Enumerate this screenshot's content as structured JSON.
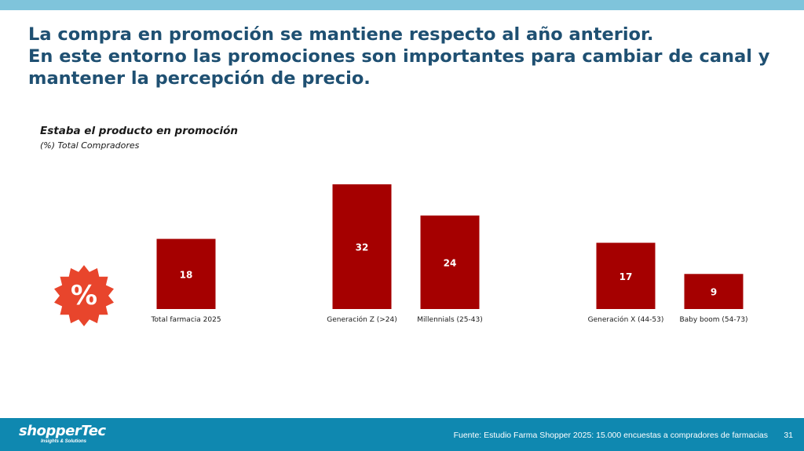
{
  "headline": {
    "line1": "La compra en promoción se mantiene respecto al año anterior.",
    "line2": "En este entorno las promociones son importantes para cambiar de canal y",
    "line3": "mantener la percepción de precio."
  },
  "promo_icon": "percent-badge-icon",
  "chart_data": {
    "type": "bar",
    "title": "Estaba el producto en promoción",
    "subtitle": "(%) Total Compradores",
    "categories": [
      "Total farmacia 2025",
      "Generación Z (>24)",
      "Millennials (25-43)",
      "Generación X (44-53)",
      "Baby boom (54-73)"
    ],
    "values": [
      18,
      32,
      24,
      17,
      9
    ],
    "unit": "%",
    "xlabel": "",
    "ylabel": "",
    "ylim": [
      0,
      32
    ],
    "grid": false,
    "bar_color": "#a50000"
  },
  "footer": {
    "logo_text": "shopperTec",
    "logo_tagline": "Insights & Solutions",
    "source": "Fuente: Estudio Farma Shopper 2025: 15.000 encuestas a compradores de farmacias",
    "page_number": "31"
  },
  "colors": {
    "top_stripe": "#7fc4db",
    "headline": "#1f5072",
    "footer_bg": "#0f88b0",
    "bar": "#a50000",
    "badge": "#e8452c"
  }
}
